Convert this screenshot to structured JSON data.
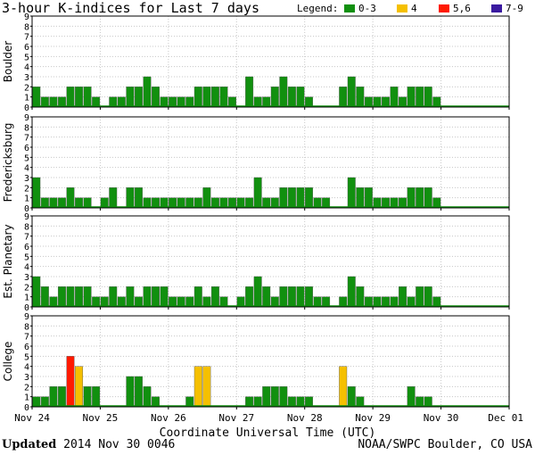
{
  "title": "3-hour K-indices for Last 7 days",
  "legend": {
    "label": "Legend:",
    "items": [
      {
        "label": "0-3",
        "color": "#11900f"
      },
      {
        "label": "4",
        "color": "#f5c000"
      },
      {
        "label": "5,6",
        "color": "#ff1a00"
      },
      {
        "label": "7-9",
        "color": "#3a1aa0"
      }
    ]
  },
  "xlabel": "Coordinate Universal Time (UTC)",
  "footer": {
    "updated_label": "Updated",
    "updated_value": "2014 Nov 30 0046",
    "credit": "NOAA/SWPC Boulder, CO USA"
  },
  "chart_data": {
    "type": "bar",
    "x_tick_labels": [
      "Nov 24",
      "Nov 25",
      "Nov 26",
      "Nov 27",
      "Nov 28",
      "Nov 29",
      "Nov 30",
      "Dec 01"
    ],
    "y_ticks": [
      0,
      1,
      2,
      3,
      4,
      5,
      6,
      7,
      8,
      9
    ],
    "ylim": [
      0,
      9
    ],
    "intervals_per_day": 8,
    "grid": true,
    "series": [
      {
        "name": "Boulder",
        "values": [
          2,
          1,
          1,
          1,
          2,
          2,
          2,
          1,
          0,
          1,
          1,
          2,
          2,
          3,
          2,
          1,
          1,
          1,
          1,
          2,
          2,
          2,
          2,
          1,
          0,
          3,
          1,
          1,
          2,
          3,
          2,
          2,
          1,
          0,
          0,
          0,
          2,
          3,
          2,
          1,
          1,
          1,
          2,
          1,
          2,
          2,
          2,
          1
        ]
      },
      {
        "name": "Fredericksburg",
        "values": [
          3,
          1,
          1,
          1,
          2,
          1,
          1,
          0,
          1,
          2,
          0,
          2,
          2,
          1,
          1,
          1,
          1,
          1,
          1,
          1,
          2,
          1,
          1,
          1,
          1,
          1,
          3,
          1,
          1,
          2,
          2,
          2,
          2,
          1,
          1,
          0,
          0,
          3,
          2,
          2,
          1,
          1,
          1,
          1,
          2,
          2,
          2,
          1
        ]
      },
      {
        "name": "Est. Planetary",
        "values": [
          3,
          2,
          1,
          2,
          2,
          2,
          2,
          1,
          1,
          2,
          1,
          2,
          1,
          2,
          2,
          2,
          1,
          1,
          1,
          2,
          1,
          2,
          1,
          0,
          1,
          2,
          3,
          2,
          1,
          2,
          2,
          2,
          2,
          1,
          1,
          0,
          1,
          3,
          2,
          1,
          1,
          1,
          1,
          2,
          1,
          2,
          2,
          1
        ]
      },
      {
        "name": "College",
        "values": [
          1,
          1,
          2,
          2,
          5,
          4,
          2,
          2,
          0,
          0,
          0,
          3,
          3,
          2,
          1,
          0,
          0,
          0,
          1,
          4,
          4,
          0,
          0,
          0,
          0,
          1,
          1,
          2,
          2,
          2,
          1,
          1,
          1,
          0,
          0,
          0,
          4,
          2,
          1,
          0,
          0,
          0,
          0,
          0,
          2,
          1,
          1,
          0
        ]
      }
    ]
  }
}
